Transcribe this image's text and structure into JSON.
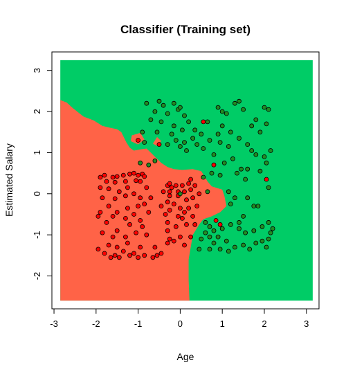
{
  "chart_data": {
    "type": "scatter",
    "title": "Classifier (Training set)",
    "xlabel": "Age",
    "ylabel": "Estimated Salary",
    "xlim": [
      -3.05,
      3.3
    ],
    "ylim": [
      -2.8,
      3.45
    ],
    "xticks": [
      -3,
      -2,
      -1,
      0,
      1,
      2,
      3
    ],
    "yticks": [
      -2,
      -1,
      0,
      1,
      2,
      3
    ],
    "xtick_labels": [
      "-3",
      "-2",
      "-1",
      "0",
      "1",
      "2",
      "3"
    ],
    "ytick_labels": [
      "-2",
      "-1",
      "0",
      "1",
      "2",
      "3"
    ],
    "grid": false,
    "legend": "none",
    "region_extent": {
      "x": [
        -2.85,
        3.15
      ],
      "y": [
        -2.6,
        3.25
      ]
    },
    "colors": {
      "region_class0": "#FF6347",
      "region_class1": "#00CC66",
      "point_class0": "#FF0000",
      "point_class1": "#228B22",
      "point_outline": "#000000"
    },
    "region_class0_boundary": [
      [
        -2.85,
        2.28
      ],
      [
        -2.7,
        2.22
      ],
      [
        -2.55,
        2.08
      ],
      [
        -2.3,
        1.88
      ],
      [
        -2.05,
        1.78
      ],
      [
        -1.85,
        1.65
      ],
      [
        -1.65,
        1.6
      ],
      [
        -1.5,
        1.57
      ],
      [
        -1.4,
        1.5
      ],
      [
        -1.28,
        1.25
      ],
      [
        -1.2,
        1.12
      ],
      [
        -1.1,
        1.05
      ],
      [
        -0.95,
        1.08
      ],
      [
        -0.8,
        1.1
      ],
      [
        -0.7,
        1.0
      ],
      [
        -0.6,
        0.9
      ],
      [
        -0.45,
        0.75
      ],
      [
        -0.3,
        0.65
      ],
      [
        -0.15,
        0.6
      ],
      [
        0.05,
        0.58
      ],
      [
        0.3,
        0.6
      ],
      [
        0.5,
        0.55
      ],
      [
        0.65,
        0.3
      ],
      [
        0.75,
        0.18
      ],
      [
        1.0,
        0.1
      ],
      [
        1.05,
        -0.05
      ],
      [
        1.1,
        -0.3
      ],
      [
        0.95,
        -0.45
      ],
      [
        0.75,
        -0.55
      ],
      [
        0.55,
        -0.62
      ],
      [
        0.45,
        -0.75
      ],
      [
        0.3,
        -1.0
      ],
      [
        0.25,
        -1.3
      ],
      [
        0.2,
        -1.6
      ],
      [
        0.2,
        -2.1
      ],
      [
        0.22,
        -2.6
      ],
      [
        -2.85,
        -2.6
      ]
    ],
    "region_class0_islands": [
      [
        [
          -1.15,
          1.42
        ],
        [
          -0.95,
          1.48
        ],
        [
          -0.85,
          1.32
        ],
        [
          -1.0,
          1.2
        ],
        [
          -1.18,
          1.28
        ]
      ],
      [
        [
          -0.55,
          1.38
        ],
        [
          -0.45,
          1.28
        ],
        [
          -0.55,
          1.16
        ],
        [
          -0.65,
          1.22
        ]
      ]
    ],
    "series": [
      {
        "name": "0",
        "points": [
          [
            -1.9,
            0.4
          ],
          [
            -1.8,
            0.45
          ],
          [
            -1.6,
            0.4
          ],
          [
            -1.5,
            0.42
          ],
          [
            -1.35,
            0.45
          ],
          [
            -1.2,
            0.48
          ],
          [
            -1.1,
            0.5
          ],
          [
            -1.0,
            0.45
          ],
          [
            -0.9,
            0.48
          ],
          [
            -0.85,
            0.42
          ],
          [
            -1.3,
            0.3
          ],
          [
            -1.05,
            0.32
          ],
          [
            -0.95,
            0.3
          ],
          [
            -1.75,
            0.3
          ],
          [
            -1.55,
            0.28
          ],
          [
            -1.9,
            0.15
          ],
          [
            -1.7,
            0.12
          ],
          [
            -1.25,
            0.15
          ],
          [
            -0.8,
            0.15
          ],
          [
            -1.45,
            0.05
          ],
          [
            -1.85,
            -0.1
          ],
          [
            -1.55,
            -0.12
          ],
          [
            -1.3,
            -0.05
          ],
          [
            -0.95,
            -0.1
          ],
          [
            -1.7,
            -0.3
          ],
          [
            -1.25,
            -0.35
          ],
          [
            -0.85,
            -0.25
          ],
          [
            -1.9,
            -0.45
          ],
          [
            -1.6,
            -0.55
          ],
          [
            -1.5,
            -0.45
          ],
          [
            -1.1,
            -0.5
          ],
          [
            -0.75,
            -0.45
          ],
          [
            -1.95,
            -0.55
          ],
          [
            -1.3,
            -0.6
          ],
          [
            -0.95,
            -0.65
          ],
          [
            -1.0,
            -0.3
          ],
          [
            -1.75,
            -0.7
          ],
          [
            -1.2,
            -0.75
          ],
          [
            -0.9,
            -0.8
          ],
          [
            -1.85,
            -0.95
          ],
          [
            -1.5,
            -0.9
          ],
          [
            -1.05,
            -0.95
          ],
          [
            -0.8,
            -1.0
          ],
          [
            -1.3,
            -1.05
          ],
          [
            -1.7,
            -1.25
          ],
          [
            -1.5,
            -1.3
          ],
          [
            -1.25,
            -1.2
          ],
          [
            -0.95,
            -1.3
          ],
          [
            -0.6,
            -1.3
          ],
          [
            -1.95,
            -1.35
          ],
          [
            -1.8,
            -1.45
          ],
          [
            -1.55,
            -1.5
          ],
          [
            -1.35,
            -1.4
          ],
          [
            -1.1,
            -1.45
          ],
          [
            -0.85,
            -1.5
          ],
          [
            -1.65,
            -1.55
          ],
          [
            -1.45,
            -1.55
          ],
          [
            -1.2,
            -1.5
          ],
          [
            -1.0,
            -1.55
          ],
          [
            -0.65,
            -1.55
          ],
          [
            -0.55,
            -1.5
          ],
          [
            -0.3,
            -1.2
          ],
          [
            -0.45,
            -0.3
          ],
          [
            -0.35,
            -0.5
          ],
          [
            -0.3,
            -0.7
          ],
          [
            -0.3,
            -0.9
          ],
          [
            -0.25,
            -1.1
          ],
          [
            -0.45,
            -1.45
          ],
          [
            -0.3,
            -0.2
          ],
          [
            -0.25,
            -0.4
          ],
          [
            -0.3,
            0.2
          ],
          [
            -0.25,
            0.25
          ],
          [
            -0.2,
            0.15
          ],
          [
            -0.25,
            -0.05
          ],
          [
            -0.15,
            -0.25
          ],
          [
            -0.05,
            -0.05
          ],
          [
            -0.05,
            -0.55
          ],
          [
            0.0,
            -0.35
          ],
          [
            0.05,
            0.2
          ],
          [
            0.1,
            0.05
          ],
          [
            0.15,
            -0.15
          ],
          [
            0.2,
            -0.35
          ],
          [
            0.25,
            0.1
          ],
          [
            0.3,
            -0.1
          ],
          [
            0.35,
            0.2
          ],
          [
            0.4,
            -0.3
          ],
          [
            0.45,
            0.0
          ],
          [
            0.2,
            0.25
          ],
          [
            0.05,
            -0.6
          ],
          [
            0.15,
            -0.75
          ],
          [
            0.3,
            -0.55
          ],
          [
            -0.1,
            -0.8
          ],
          [
            0.0,
            -1.05
          ],
          [
            -0.15,
            -1.15
          ],
          [
            0.1,
            -1.25
          ],
          [
            0.25,
            -1.05
          ],
          [
            -0.25,
            0.05
          ],
          [
            0.1,
            -0.45
          ],
          [
            -0.1,
            0.2
          ],
          [
            0.35,
            -0.75
          ],
          [
            -1.0,
            1.3
          ],
          [
            -0.5,
            1.2
          ],
          [
            0.55,
            1.75
          ],
          [
            0.8,
            0.7
          ],
          [
            0.85,
            -0.65
          ],
          [
            2.05,
            0.35
          ],
          [
            -0.05,
            0.05
          ],
          [
            0.25,
            0.35
          ],
          [
            -0.4,
            0.05
          ],
          [
            -1.1,
            0.0
          ],
          [
            -0.7,
            -0.1
          ],
          [
            -1.6,
            -1.05
          ],
          [
            0.95,
            -0.75
          ]
        ]
      },
      {
        "name": "1",
        "points": [
          [
            -0.8,
            2.2
          ],
          [
            -0.5,
            2.25
          ],
          [
            -0.4,
            2.15
          ],
          [
            -0.15,
            2.2
          ],
          [
            -0.05,
            2.05
          ],
          [
            0.0,
            2.1
          ],
          [
            -0.6,
            2.0
          ],
          [
            -0.3,
            1.95
          ],
          [
            0.1,
            1.9
          ],
          [
            0.2,
            1.75
          ],
          [
            -0.7,
            1.8
          ],
          [
            -0.45,
            1.75
          ],
          [
            -0.15,
            1.65
          ],
          [
            0.05,
            1.55
          ],
          [
            0.35,
            1.55
          ],
          [
            0.5,
            1.45
          ],
          [
            0.65,
            1.75
          ],
          [
            0.3,
            1.35
          ],
          [
            0.1,
            1.25
          ],
          [
            -0.1,
            1.3
          ],
          [
            -0.3,
            1.2
          ],
          [
            -0.9,
            1.5
          ],
          [
            -0.85,
            1.25
          ],
          [
            -0.55,
            1.5
          ],
          [
            -0.2,
            1.45
          ],
          [
            0.0,
            1.15
          ],
          [
            0.15,
            1.05
          ],
          [
            0.4,
            1.2
          ],
          [
            0.55,
            1.1
          ],
          [
            0.7,
            1.3
          ],
          [
            0.9,
            2.1
          ],
          [
            1.0,
            2.0
          ],
          [
            1.1,
            1.95
          ],
          [
            1.3,
            2.2
          ],
          [
            1.4,
            2.25
          ],
          [
            1.5,
            2.05
          ],
          [
            1.7,
            1.65
          ],
          [
            1.8,
            1.8
          ],
          [
            2.0,
            2.1
          ],
          [
            2.1,
            2.05
          ],
          [
            2.05,
            1.7
          ],
          [
            1.9,
            1.5
          ],
          [
            1.0,
            1.65
          ],
          [
            1.2,
            1.5
          ],
          [
            1.4,
            1.35
          ],
          [
            1.6,
            1.2
          ],
          [
            0.95,
            1.25
          ],
          [
            1.15,
            1.15
          ],
          [
            1.7,
            1.05
          ],
          [
            2.0,
            0.9
          ],
          [
            2.15,
            1.05
          ],
          [
            2.05,
            0.75
          ],
          [
            1.9,
            0.55
          ],
          [
            1.35,
            0.5
          ],
          [
            1.55,
            0.35
          ],
          [
            2.1,
            0.15
          ],
          [
            0.8,
            0.95
          ],
          [
            0.95,
            0.45
          ],
          [
            0.75,
            0.5
          ],
          [
            0.55,
            0.4
          ],
          [
            0.65,
            0.05
          ],
          [
            1.15,
            0.05
          ],
          [
            1.3,
            -0.1
          ],
          [
            1.75,
            -0.3
          ],
          [
            1.85,
            -0.3
          ],
          [
            1.5,
            -0.55
          ],
          [
            1.4,
            -0.7
          ],
          [
            1.2,
            -0.75
          ],
          [
            1.0,
            -0.85
          ],
          [
            0.8,
            -0.9
          ],
          [
            0.7,
            -0.8
          ],
          [
            0.9,
            -1.05
          ],
          [
            0.8,
            -1.2
          ],
          [
            0.7,
            -1.35
          ],
          [
            0.95,
            -1.35
          ],
          [
            1.1,
            -1.15
          ],
          [
            1.3,
            -1.3
          ],
          [
            1.5,
            -1.25
          ],
          [
            1.65,
            -1.35
          ],
          [
            1.8,
            -1.2
          ],
          [
            1.95,
            -1.15
          ],
          [
            2.1,
            -1.1
          ],
          [
            2.2,
            -0.85
          ],
          [
            2.1,
            -0.7
          ],
          [
            1.95,
            -0.8
          ],
          [
            1.75,
            -0.9
          ],
          [
            2.05,
            -1.3
          ],
          [
            0.6,
            -0.95
          ],
          [
            0.5,
            -1.1
          ],
          [
            0.45,
            -1.35
          ],
          [
            0.7,
            -1.05
          ],
          [
            1.15,
            -1.4
          ],
          [
            1.4,
            -0.85
          ],
          [
            2.15,
            -0.95
          ],
          [
            0.6,
            -0.7
          ],
          [
            1.6,
            -0.1
          ],
          [
            -0.75,
            0.7
          ],
          [
            -0.6,
            0.8
          ],
          [
            -0.95,
            0.75
          ],
          [
            0.0,
            0.0
          ],
          [
            1.05,
            0.75
          ],
          [
            1.25,
            0.85
          ],
          [
            1.45,
            0.6
          ],
          [
            1.6,
            0.6
          ],
          [
            1.8,
            0.95
          ],
          [
            1.55,
            -0.95
          ],
          [
            0.9,
            1.45
          ],
          [
            1.2,
            -0.25
          ]
        ]
      }
    ]
  }
}
